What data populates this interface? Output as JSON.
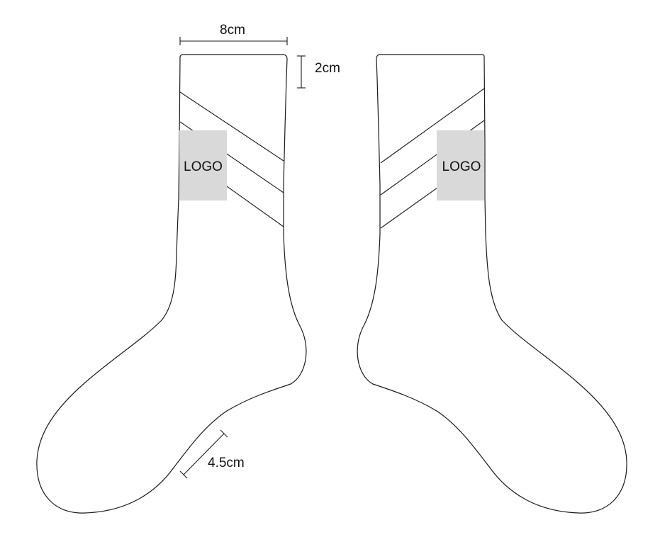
{
  "labels": {
    "width_dimension": "8cm",
    "cuff_dimension": "2cm",
    "foot_dimension": "4.5cm",
    "left_logo": "LOGO",
    "right_logo": "LOGO"
  },
  "colors": {
    "outline": "#1a1a1a",
    "logo_fill": "#d9d9d9",
    "background": "#ffffff"
  }
}
